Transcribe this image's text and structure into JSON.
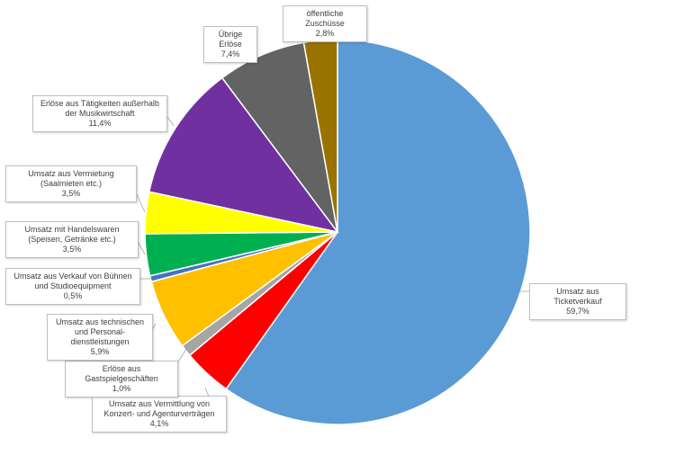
{
  "chart_data": {
    "type": "pie",
    "start": "top",
    "direction": "clockwise",
    "slices": [
      {
        "label": "Umsatz aus Ticketverkauf",
        "value": 59.7,
        "value_label": "59,7%",
        "color": "#5B9BD5"
      },
      {
        "label": "Umsatz aus Vermittlung von Konzert- und Agenturverträgen",
        "value": 4.1,
        "value_label": "4,1%",
        "color": "#FF0000"
      },
      {
        "label": "Erlöse aus Gastspielgeschäften",
        "value": 1.0,
        "value_label": "1,0%",
        "color": "#A5A5A5"
      },
      {
        "label": "Umsatz aus technischen und Personal-dienstleistungen",
        "value": 5.9,
        "value_label": "5,9%",
        "color": "#FFC000"
      },
      {
        "label": "Umsatz aus Verkauf von Bühnen und Studioequipment",
        "value": 0.5,
        "value_label": "0,5%",
        "color": "#4472C4"
      },
      {
        "label": "Umsatz mit Handelswaren (Speisen, Getränke etc.)",
        "value": 3.5,
        "value_label": "3,5%",
        "color": "#00B050"
      },
      {
        "label": "Umsatz aus Vermietung (Saalmieten etc.)",
        "value": 3.5,
        "value_label": "3,5%",
        "color": "#FFFF00"
      },
      {
        "label": "Erlöse aus Tätigkeiten außerhalb der Musikwirtschaft",
        "value": 11.4,
        "value_label": "11,4%",
        "color": "#7030A0"
      },
      {
        "label": "Übrige Erlöse",
        "value": 7.4,
        "value_label": "7,4%",
        "color": "#636363"
      },
      {
        "label": "öffentliche Zuschüsse",
        "value": 2.8,
        "value_label": "2,8%",
        "color": "#997300"
      }
    ]
  }
}
